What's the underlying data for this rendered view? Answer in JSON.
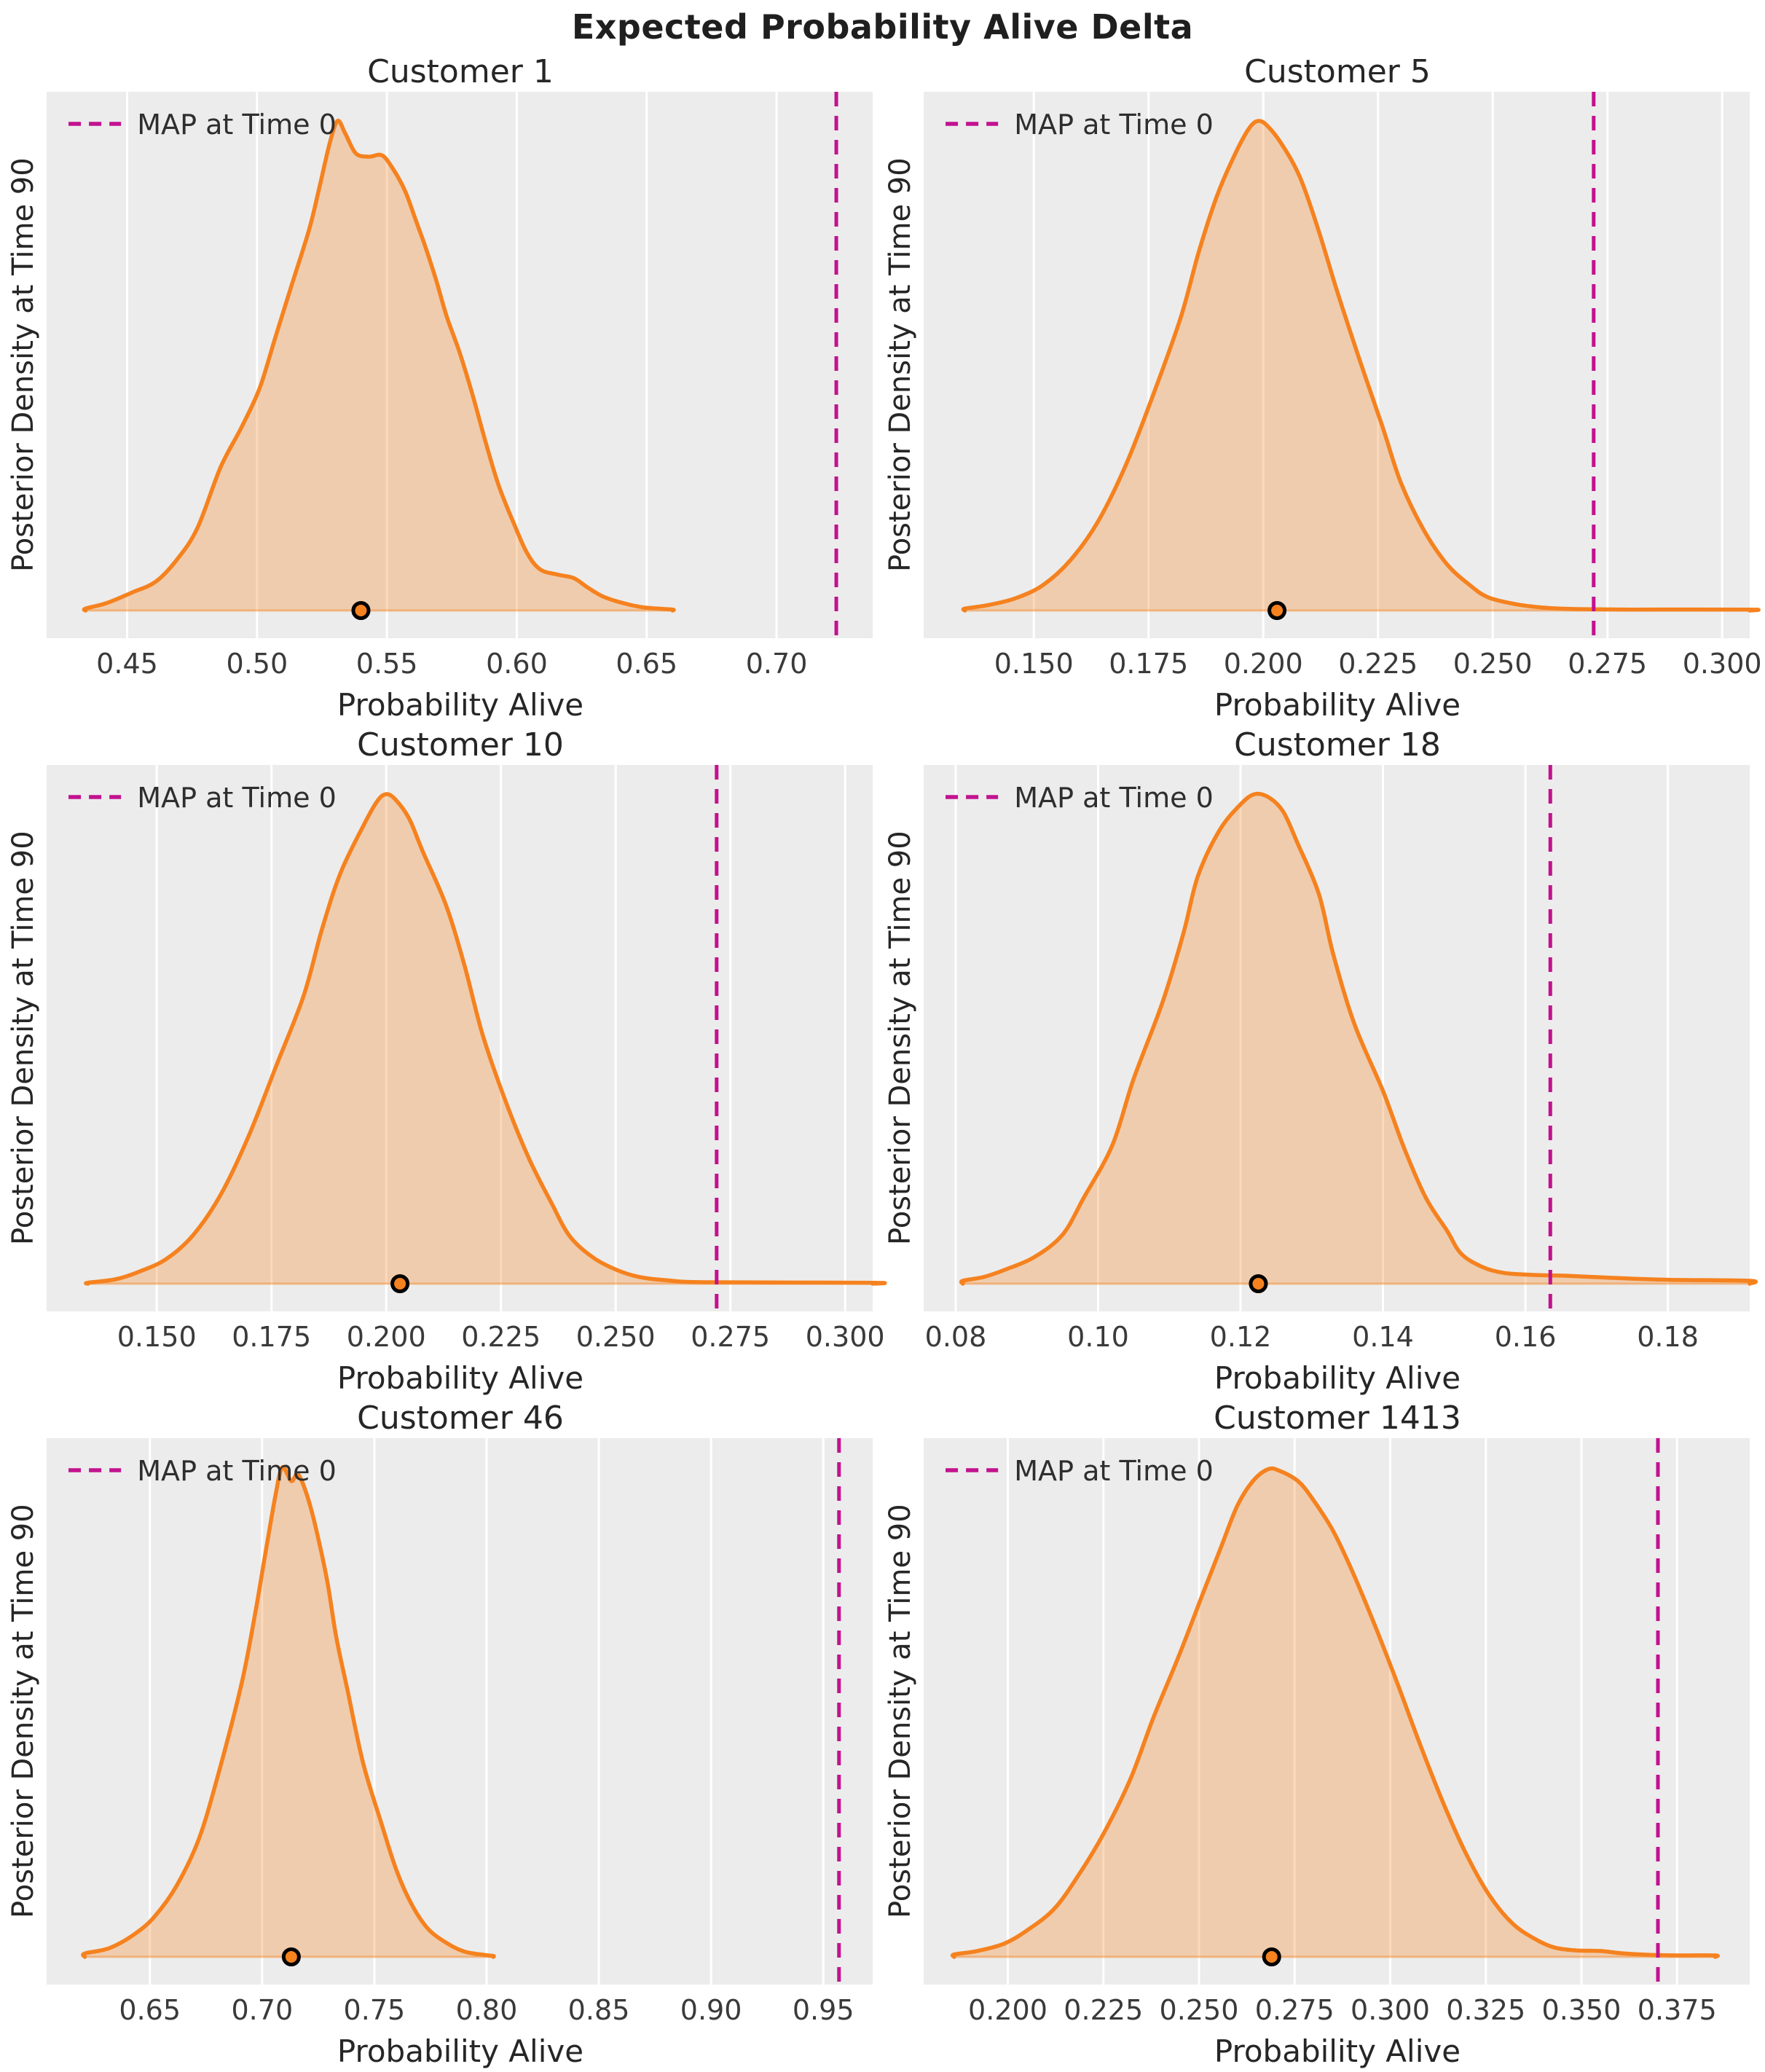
{
  "suptitle": "Expected Probability Alive Delta",
  "axis": {
    "xlabel": "Probability Alive",
    "ylabel": "Posterior Density at Time 90"
  },
  "legend_label": "MAP at Time 0",
  "colors": {
    "figure_bg": "#FFFFFF",
    "plot_bg": "#ECECEC",
    "grid": "#FFFFFF",
    "kde_line": "#F5821F",
    "kde_fill": "rgba(245,130,31,0.30)",
    "baseline_line": "rgba(245,130,31,0.45)",
    "map_line": "#C2128F",
    "marker_fill": "#F5821F",
    "marker_edge": "#000000",
    "title_text": "#262626",
    "tick_text": "#3A3A3A"
  },
  "chart_data": {
    "type": "area",
    "kind": "kde-density-grid",
    "rows": 3,
    "cols": 2,
    "grid": "vertical-only",
    "legend_position": "upper-left",
    "subplots": [
      {
        "title": "Customer 1",
        "xlim": [
          0.419,
          0.737
        ],
        "ticks": [
          0.45,
          0.5,
          0.55,
          0.6,
          0.65,
          0.7
        ],
        "tick_labels": [
          "0.45",
          "0.50",
          "0.55",
          "0.60",
          "0.65",
          "0.70"
        ],
        "map_x": 0.723,
        "dot_x": 0.54,
        "curve": [
          [
            0.434,
            0.004
          ],
          [
            0.442,
            0.015
          ],
          [
            0.452,
            0.037
          ],
          [
            0.461,
            0.059
          ],
          [
            0.469,
            0.103
          ],
          [
            0.477,
            0.168
          ],
          [
            0.486,
            0.293
          ],
          [
            0.494,
            0.374
          ],
          [
            0.501,
            0.454
          ],
          [
            0.507,
            0.557
          ],
          [
            0.513,
            0.659
          ],
          [
            0.52,
            0.777
          ],
          [
            0.524,
            0.864
          ],
          [
            0.528,
            0.955
          ],
          [
            0.531,
            1.0
          ],
          [
            0.534,
            0.974
          ],
          [
            0.538,
            0.934
          ],
          [
            0.543,
            0.927
          ],
          [
            0.548,
            0.93
          ],
          [
            0.552,
            0.905
          ],
          [
            0.557,
            0.857
          ],
          [
            0.561,
            0.799
          ],
          [
            0.565,
            0.74
          ],
          [
            0.569,
            0.674
          ],
          [
            0.573,
            0.601
          ],
          [
            0.578,
            0.527
          ],
          [
            0.583,
            0.44
          ],
          [
            0.588,
            0.344
          ],
          [
            0.593,
            0.256
          ],
          [
            0.599,
            0.176
          ],
          [
            0.604,
            0.117
          ],
          [
            0.609,
            0.084
          ],
          [
            0.616,
            0.073
          ],
          [
            0.622,
            0.066
          ],
          [
            0.627,
            0.048
          ],
          [
            0.633,
            0.029
          ],
          [
            0.641,
            0.015
          ],
          [
            0.648,
            0.007
          ],
          [
            0.654,
            0.004
          ],
          [
            0.66,
            0.002
          ]
        ]
      },
      {
        "title": "Customer 5",
        "xlim": [
          0.126,
          0.306
        ],
        "ticks": [
          0.15,
          0.175,
          0.2,
          0.225,
          0.25,
          0.275,
          0.3
        ],
        "tick_labels": [
          "0.150",
          "0.175",
          "0.200",
          "0.225",
          "0.250",
          "0.275",
          "0.300"
        ],
        "map_x": 0.272,
        "dot_x": 0.203,
        "curve": [
          [
            0.135,
            0.004
          ],
          [
            0.14,
            0.011
          ],
          [
            0.146,
            0.025
          ],
          [
            0.152,
            0.052
          ],
          [
            0.158,
            0.103
          ],
          [
            0.164,
            0.182
          ],
          [
            0.17,
            0.296
          ],
          [
            0.176,
            0.44
          ],
          [
            0.182,
            0.598
          ],
          [
            0.186,
            0.734
          ],
          [
            0.19,
            0.849
          ],
          [
            0.194,
            0.935
          ],
          [
            0.197,
            0.986
          ],
          [
            0.199,
            1.0
          ],
          [
            0.201,
            0.989
          ],
          [
            0.204,
            0.953
          ],
          [
            0.208,
            0.885
          ],
          [
            0.212,
            0.778
          ],
          [
            0.216,
            0.655
          ],
          [
            0.221,
            0.512
          ],
          [
            0.226,
            0.375
          ],
          [
            0.23,
            0.261
          ],
          [
            0.235,
            0.164
          ],
          [
            0.24,
            0.095
          ],
          [
            0.245,
            0.052
          ],
          [
            0.249,
            0.027
          ],
          [
            0.255,
            0.013
          ],
          [
            0.261,
            0.006
          ],
          [
            0.268,
            0.003
          ],
          [
            0.28,
            0.002
          ],
          [
            0.306,
            0.002
          ]
        ]
      },
      {
        "title": "Customer 10",
        "xlim": [
          0.126,
          0.306
        ],
        "ticks": [
          0.15,
          0.175,
          0.2,
          0.225,
          0.25,
          0.275,
          0.3
        ],
        "tick_labels": [
          "0.150",
          "0.175",
          "0.200",
          "0.225",
          "0.250",
          "0.275",
          "0.300"
        ],
        "map_x": 0.272,
        "dot_x": 0.203,
        "curve": [
          [
            0.135,
            0.002
          ],
          [
            0.141,
            0.009
          ],
          [
            0.146,
            0.024
          ],
          [
            0.152,
            0.05
          ],
          [
            0.158,
            0.1
          ],
          [
            0.164,
            0.183
          ],
          [
            0.17,
            0.301
          ],
          [
            0.176,
            0.444
          ],
          [
            0.182,
            0.588
          ],
          [
            0.186,
            0.724
          ],
          [
            0.19,
            0.838
          ],
          [
            0.195,
            0.935
          ],
          [
            0.198,
            0.985
          ],
          [
            0.2,
            1.0
          ],
          [
            0.202,
            0.989
          ],
          [
            0.205,
            0.95
          ],
          [
            0.208,
            0.882
          ],
          [
            0.213,
            0.774
          ],
          [
            0.217,
            0.652
          ],
          [
            0.221,
            0.509
          ],
          [
            0.226,
            0.373
          ],
          [
            0.231,
            0.258
          ],
          [
            0.236,
            0.165
          ],
          [
            0.24,
            0.097
          ],
          [
            0.245,
            0.054
          ],
          [
            0.25,
            0.029
          ],
          [
            0.255,
            0.014
          ],
          [
            0.261,
            0.007
          ],
          [
            0.27,
            0.003
          ],
          [
            0.306,
            0.002
          ]
        ]
      },
      {
        "title": "Customer 18",
        "xlim": [
          0.0755,
          0.1915
        ],
        "ticks": [
          0.08,
          0.1,
          0.12,
          0.14,
          0.16,
          0.18
        ],
        "tick_labels": [
          "0.08",
          "0.10",
          "0.12",
          "0.14",
          "0.16",
          "0.18"
        ],
        "map_x": 0.1635,
        "dot_x": 0.1225,
        "curve": [
          [
            0.081,
            0.006
          ],
          [
            0.084,
            0.014
          ],
          [
            0.087,
            0.029
          ],
          [
            0.091,
            0.054
          ],
          [
            0.095,
            0.1
          ],
          [
            0.098,
            0.176
          ],
          [
            0.102,
            0.283
          ],
          [
            0.105,
            0.419
          ],
          [
            0.109,
            0.573
          ],
          [
            0.112,
            0.717
          ],
          [
            0.114,
            0.832
          ],
          [
            0.117,
            0.925
          ],
          [
            0.12,
            0.979
          ],
          [
            0.122,
            1.0
          ],
          [
            0.124,
            0.993
          ],
          [
            0.126,
            0.964
          ],
          [
            0.128,
            0.9
          ],
          [
            0.131,
            0.796
          ],
          [
            0.133,
            0.674
          ],
          [
            0.136,
            0.53
          ],
          [
            0.14,
            0.394
          ],
          [
            0.143,
            0.276
          ],
          [
            0.146,
            0.176
          ],
          [
            0.149,
            0.108
          ],
          [
            0.151,
            0.061
          ],
          [
            0.154,
            0.034
          ],
          [
            0.157,
            0.022
          ],
          [
            0.161,
            0.018
          ],
          [
            0.166,
            0.016
          ],
          [
            0.172,
            0.012
          ],
          [
            0.18,
            0.008
          ],
          [
            0.1915,
            0.006
          ]
        ]
      },
      {
        "title": "Customer 46",
        "xlim": [
          0.604,
          0.972
        ],
        "ticks": [
          0.65,
          0.7,
          0.75,
          0.8,
          0.85,
          0.9,
          0.95
        ],
        "tick_labels": [
          "0.65",
          "0.70",
          "0.75",
          "0.80",
          "0.85",
          "0.90",
          "0.95"
        ],
        "map_x": 0.957,
        "dot_x": 0.713,
        "curve": [
          [
            0.621,
            0.007
          ],
          [
            0.632,
            0.018
          ],
          [
            0.643,
            0.046
          ],
          [
            0.652,
            0.082
          ],
          [
            0.662,
            0.146
          ],
          [
            0.672,
            0.243
          ],
          [
            0.681,
            0.382
          ],
          [
            0.691,
            0.561
          ],
          [
            0.697,
            0.704
          ],
          [
            0.702,
            0.839
          ],
          [
            0.706,
            0.944
          ],
          [
            0.709,
            1.0
          ],
          [
            0.713,
            0.972
          ],
          [
            0.716,
            0.986
          ],
          [
            0.72,
            0.943
          ],
          [
            0.724,
            0.875
          ],
          [
            0.729,
            0.768
          ],
          [
            0.733,
            0.654
          ],
          [
            0.738,
            0.546
          ],
          [
            0.745,
            0.396
          ],
          [
            0.753,
            0.275
          ],
          [
            0.76,
            0.175
          ],
          [
            0.767,
            0.104
          ],
          [
            0.774,
            0.057
          ],
          [
            0.782,
            0.029
          ],
          [
            0.79,
            0.011
          ],
          [
            0.799,
            0.004
          ],
          [
            0.803,
            0.002
          ]
        ]
      },
      {
        "title": "Customer 1413",
        "xlim": [
          0.178,
          0.394
        ],
        "ticks": [
          0.2,
          0.225,
          0.25,
          0.275,
          0.3,
          0.325,
          0.35,
          0.375
        ],
        "tick_labels": [
          "0.200",
          "0.225",
          "0.250",
          "0.275",
          "0.300",
          "0.325",
          "0.350",
          "0.375"
        ],
        "map_x": 0.37,
        "dot_x": 0.269,
        "curve": [
          [
            0.186,
            0.005
          ],
          [
            0.192,
            0.012
          ],
          [
            0.199,
            0.027
          ],
          [
            0.205,
            0.054
          ],
          [
            0.212,
            0.097
          ],
          [
            0.218,
            0.161
          ],
          [
            0.225,
            0.251
          ],
          [
            0.232,
            0.362
          ],
          [
            0.238,
            0.487
          ],
          [
            0.245,
            0.62
          ],
          [
            0.251,
            0.742
          ],
          [
            0.256,
            0.842
          ],
          [
            0.26,
            0.921
          ],
          [
            0.264,
            0.971
          ],
          [
            0.268,
            0.996
          ],
          [
            0.271,
            0.993
          ],
          [
            0.276,
            0.971
          ],
          [
            0.28,
            0.932
          ],
          [
            0.285,
            0.871
          ],
          [
            0.29,
            0.789
          ],
          [
            0.296,
            0.677
          ],
          [
            0.302,
            0.556
          ],
          [
            0.308,
            0.43
          ],
          [
            0.314,
            0.312
          ],
          [
            0.32,
            0.208
          ],
          [
            0.326,
            0.125
          ],
          [
            0.332,
            0.068
          ],
          [
            0.338,
            0.036
          ],
          [
            0.343,
            0.019
          ],
          [
            0.349,
            0.013
          ],
          [
            0.355,
            0.012
          ],
          [
            0.361,
            0.007
          ],
          [
            0.368,
            0.004
          ],
          [
            0.376,
            0.003
          ],
          [
            0.385,
            0.003
          ]
        ]
      }
    ]
  }
}
